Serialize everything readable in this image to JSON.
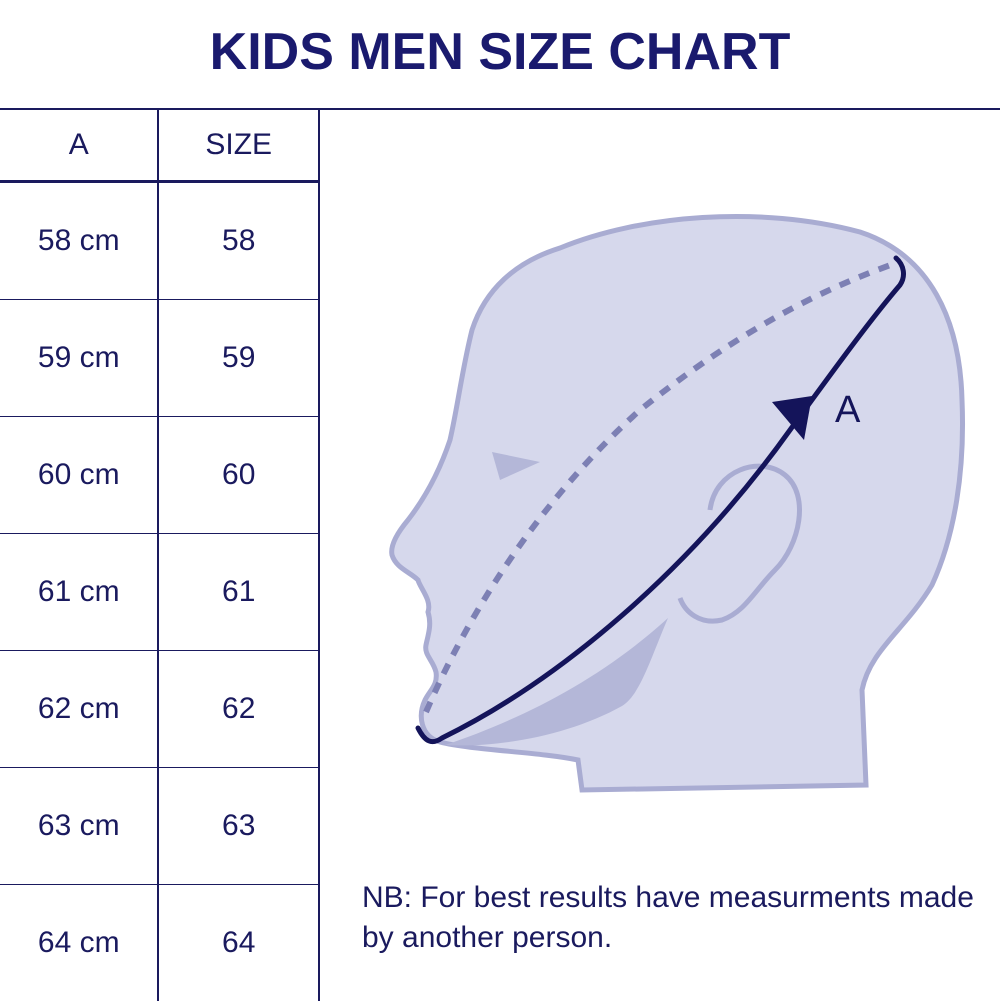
{
  "title": "KIDS MEN SIZE CHART",
  "table": {
    "headers": [
      "A",
      "SIZE"
    ],
    "rows": [
      {
        "a": "58 cm",
        "size": "58"
      },
      {
        "a": "59 cm",
        "size": "59"
      },
      {
        "a": "60 cm",
        "size": "60"
      },
      {
        "a": "61 cm",
        "size": "61"
      },
      {
        "a": "62 cm",
        "size": "62"
      },
      {
        "a": "63 cm",
        "size": "63"
      },
      {
        "a": "64 cm",
        "size": "64"
      }
    ]
  },
  "diagram": {
    "measure_label": "A",
    "colors": {
      "head_fill": "#d6d8ec",
      "head_outline": "#a9acd2",
      "shade": "#b4b7d8",
      "line": "#14145a",
      "dash": "#7d80b4"
    }
  },
  "note": "NB: For best results have measurments made by another person."
}
